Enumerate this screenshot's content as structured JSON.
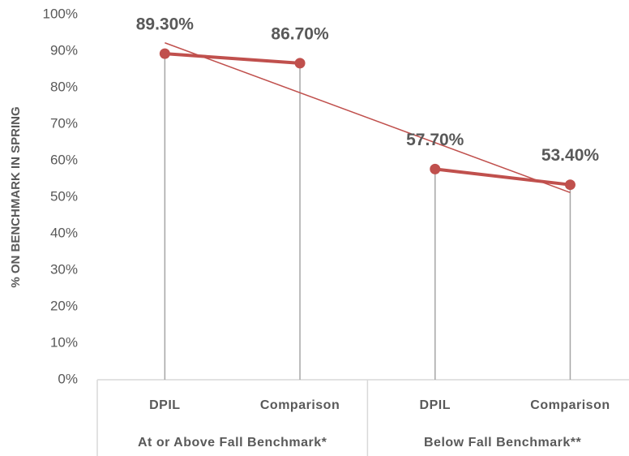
{
  "chart_data": {
    "type": "line",
    "y_label": "% ON BENCHMARK IN SPRING",
    "categories": [
      "DPIL",
      "Comparison",
      "DPIL",
      "Comparison"
    ],
    "groups": [
      "At or Above Fall Benchmark*",
      "Below Fall Benchmark**"
    ],
    "series": [
      {
        "color": "#c0504d",
        "values": [
          89.3,
          86.7,
          57.7,
          53.4
        ],
        "value_labels": [
          "89.30%",
          "86.70%",
          "57.70%",
          "53.40%"
        ]
      }
    ],
    "trendline": true,
    "ylim": [
      0,
      100
    ],
    "yticks": [
      {
        "value": 0,
        "label": "0%"
      },
      {
        "value": 10,
        "label": "10%"
      },
      {
        "value": 20,
        "label": "20%"
      },
      {
        "value": 30,
        "label": "30%"
      },
      {
        "value": 40,
        "label": "40%"
      },
      {
        "value": 50,
        "label": "50%"
      },
      {
        "value": 60,
        "label": "60%"
      },
      {
        "value": 70,
        "label": "70%"
      },
      {
        "value": 80,
        "label": "80%"
      },
      {
        "value": 90,
        "label": "90%"
      },
      {
        "value": 100,
        "label": "100%"
      }
    ],
    "grid": false
  }
}
